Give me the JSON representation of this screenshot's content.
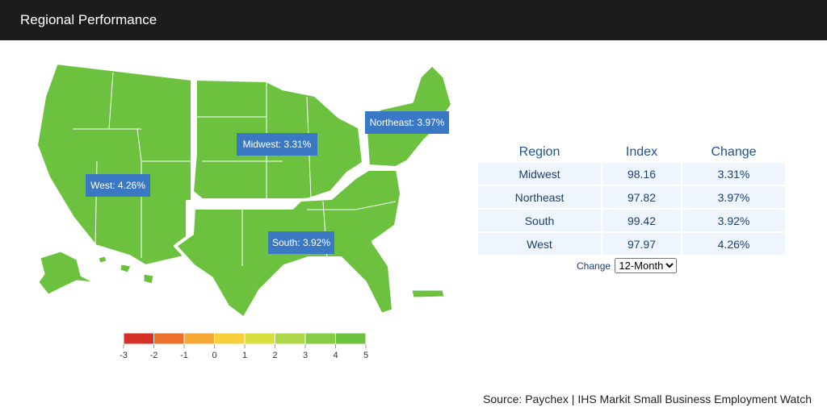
{
  "header": {
    "title": "Regional Performance"
  },
  "map": {
    "fill": "#6cc23f",
    "labels": [
      {
        "text": "Northeast: 3.97%"
      },
      {
        "text": "Midwest: 3.31%"
      },
      {
        "text": "West: 4.26%"
      },
      {
        "text": "South: 3.92%"
      }
    ],
    "legend": {
      "ticks": [
        -3,
        -2,
        -1,
        0,
        1,
        2,
        3,
        4,
        5
      ],
      "colors": [
        "#d73027",
        "#ec6f2b",
        "#f5a833",
        "#f6cf3a",
        "#d9e03d",
        "#acd748",
        "#86cc44",
        "#6cc23f"
      ]
    }
  },
  "table": {
    "columns": [
      "Region",
      "Index",
      "Change"
    ],
    "rows": [
      [
        "Midwest",
        "98.16",
        "3.31%"
      ],
      [
        "Northeast",
        "97.82",
        "3.97%"
      ],
      [
        "South",
        "99.42",
        "3.92%"
      ],
      [
        "West",
        "97.97",
        "4.26%"
      ]
    ]
  },
  "control": {
    "label": "Change",
    "options": [
      "12-Month"
    ]
  },
  "source": "Source: Paychex | IHS Markit Small Business Employment Watch"
}
